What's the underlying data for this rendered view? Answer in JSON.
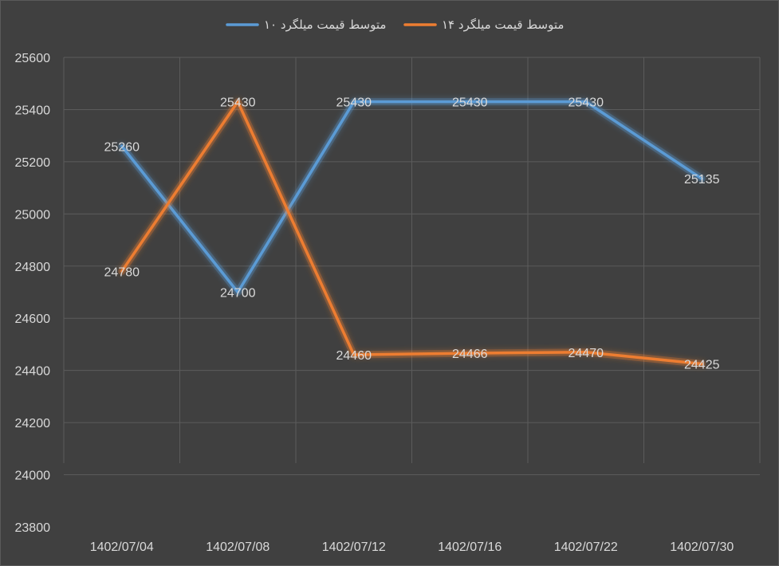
{
  "chart_data": {
    "type": "line",
    "title": "",
    "xlabel": "",
    "ylabel": "",
    "categories": [
      "1402/07/04",
      "1402/07/08",
      "1402/07/12",
      "1402/07/16",
      "1402/07/22",
      "1402/07/30"
    ],
    "ylim": [
      23800,
      25600
    ],
    "ytick_step": 200,
    "grid": true,
    "legend_position": "top",
    "series": [
      {
        "name": "متوسط قیمت میلگرد ۱۰",
        "color": "#5b9bd5",
        "values": [
          25260,
          24700,
          25430,
          25430,
          25430,
          25135
        ]
      },
      {
        "name": "متوسط قیمت میلگرد ۱۴",
        "color": "#ed7d31",
        "values": [
          24780,
          25430,
          24460,
          24466,
          24470,
          24425
        ]
      }
    ]
  }
}
